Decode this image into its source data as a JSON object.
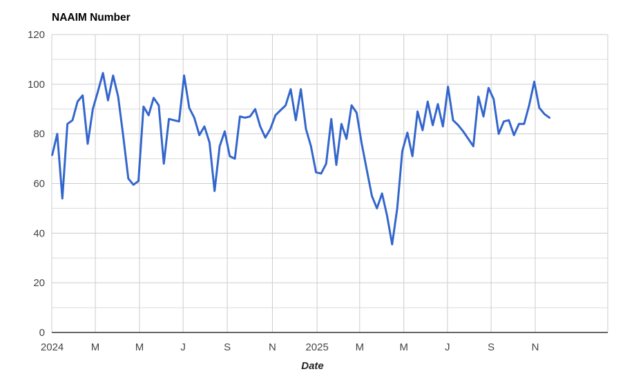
{
  "chart_data": {
    "type": "line",
    "title": "NAAIM Number",
    "xlabel": "Date",
    "ylabel": "",
    "ylim": [
      0,
      120
    ],
    "y_ticks": [
      0,
      20,
      40,
      60,
      80,
      100,
      120
    ],
    "y_minor_step": 10,
    "grid": true,
    "legend_position": "none",
    "x_unit": "weeks",
    "x_ticks": [
      {
        "label": "2024",
        "week": 0
      },
      {
        "label": "M",
        "week": 8.5
      },
      {
        "label": "M",
        "week": 17.2
      },
      {
        "label": "J",
        "week": 25.8
      },
      {
        "label": "S",
        "week": 34.5
      },
      {
        "label": "N",
        "week": 43.4
      },
      {
        "label": "2025",
        "week": 52.2
      },
      {
        "label": "M",
        "week": 60.6
      },
      {
        "label": "M",
        "week": 69.3
      },
      {
        "label": "J",
        "week": 77.9
      },
      {
        "label": "S",
        "week": 86.5
      },
      {
        "label": "N",
        "week": 95.2
      }
    ],
    "series": [
      {
        "name": "NAAIM Number",
        "color": "#3366cc",
        "values": [
          71.5,
          80,
          54,
          84,
          85.5,
          93,
          95.5,
          76,
          90,
          97,
          104.5,
          93.5,
          103.5,
          95,
          79,
          62,
          59.5,
          61,
          91,
          87.5,
          94.5,
          91.5,
          68,
          86,
          85.5,
          85,
          103.5,
          90.5,
          86.5,
          79.5,
          83,
          76.5,
          57,
          75,
          81,
          71,
          70,
          87,
          86.5,
          87,
          90,
          83,
          78.5,
          82,
          87.5,
          89.5,
          91.5,
          98,
          85.5,
          98,
          82,
          75,
          64.5,
          64,
          68,
          86,
          67.5,
          84,
          78,
          91.5,
          88.5,
          76,
          65.5,
          55,
          50,
          56,
          47,
          35.5,
          50,
          73,
          80.5,
          71,
          89,
          81.5,
          93,
          83.5,
          92,
          83,
          99,
          85.5,
          83.5,
          81,
          78,
          75,
          95,
          87,
          98.5,
          94,
          80,
          85,
          85.5,
          79.5,
          84,
          84,
          91.5,
          101,
          90.5,
          88,
          86.5
        ]
      }
    ]
  },
  "colors": {
    "line": "#3366cc",
    "grid_major": "#cccccc",
    "grid_minor": "#dbdbdb",
    "axis_line": "#333333",
    "tick_text": "#444444",
    "title_text": "#000000",
    "axis_title_text": "#222222",
    "background": "#ffffff"
  }
}
